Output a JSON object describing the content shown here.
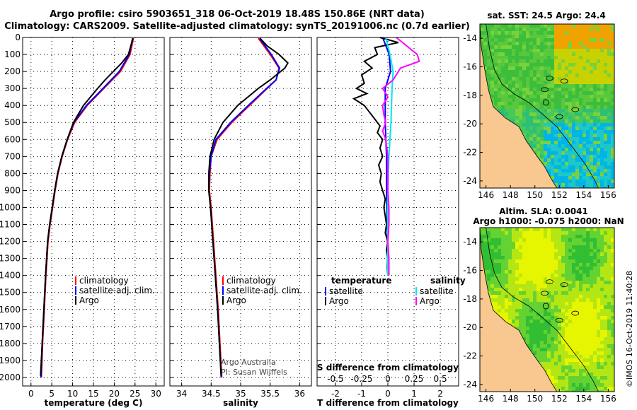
{
  "titles": {
    "line1": "Argo profile: csiro 5903651_318 06-Oct-2019 18.48S 150.86E (NRT data)",
    "line2": "Climatology: CARS2009. Satellite-adjusted climatology: synTS_20191006.nc (0.7d earlier)"
  },
  "colors": {
    "argo": "#000000",
    "climatology": "#ff0000",
    "satellite": "#0000ff",
    "argo_salinity_diff": "#ff00ff",
    "satellite_salinity_diff": "#00e5ee"
  },
  "chart_data": [
    {
      "type": "line",
      "title": "",
      "xlabel": "temperature (deg C)",
      "ylabel": "",
      "xlim": [
        -2,
        32
      ],
      "ylim": [
        2050,
        0
      ],
      "xticks": [
        0,
        5,
        10,
        15,
        20,
        25,
        30
      ],
      "yticks": [
        0,
        100,
        200,
        300,
        400,
        500,
        600,
        700,
        800,
        900,
        1000,
        1100,
        1200,
        1300,
        1400,
        1500,
        1600,
        1700,
        1800,
        1900,
        2000
      ],
      "legend": [
        "climatology",
        "satellite-adj. clim.",
        "Argo"
      ],
      "series": [
        {
          "name": "climatology",
          "color": "#ff0000",
          "depth": [
            5,
            100,
            200,
            300,
            400,
            500,
            600,
            700,
            800,
            900,
            1000,
            1100,
            1200,
            1400,
            1600,
            1800,
            2000
          ],
          "values": [
            24.6,
            23.8,
            21.5,
            17.5,
            13.5,
            10.5,
            8.8,
            7.5,
            6.5,
            5.8,
            5.2,
            4.6,
            4.1,
            3.6,
            3.2,
            2.8,
            2.5
          ]
        },
        {
          "name": "satellite-adj. clim.",
          "color": "#0000ff",
          "depth": [
            5,
            100,
            200,
            300,
            400,
            500,
            600,
            700,
            800,
            900,
            1000,
            1100,
            1200,
            1400,
            1600,
            1800,
            2000
          ],
          "values": [
            24.4,
            23.6,
            21.2,
            17.3,
            13.3,
            10.3,
            8.7,
            7.4,
            6.4,
            5.7,
            5.1,
            4.5,
            4.0,
            3.5,
            3.1,
            2.7,
            2.4
          ]
        },
        {
          "name": "Argo",
          "color": "#000000",
          "depth": [
            5,
            100,
            150,
            200,
            250,
            300,
            400,
            500,
            600,
            700,
            800,
            900,
            1000,
            1100,
            1200,
            1400,
            1600,
            1800,
            1990
          ],
          "values": [
            24.5,
            23.4,
            21.8,
            19.8,
            17.8,
            16.0,
            12.6,
            10.2,
            8.7,
            7.4,
            6.4,
            5.7,
            5.1,
            4.5,
            4.0,
            3.5,
            3.1,
            2.7,
            2.3
          ]
        }
      ]
    },
    {
      "type": "line",
      "title": "",
      "xlabel": "salinity",
      "ylabel": "",
      "xlim": [
        33.8,
        36.2
      ],
      "ylim": [
        2050,
        0
      ],
      "xticks": [
        34,
        34.5,
        35,
        35.5,
        36
      ],
      "legend": [
        "climatology",
        "satellite-adj. clim.",
        "Argo"
      ],
      "annotation": [
        "Argo Australia",
        "PI: Susan Wijffels"
      ],
      "series": [
        {
          "name": "climatology",
          "color": "#ff0000",
          "depth": [
            5,
            100,
            180,
            250,
            300,
            400,
            500,
            600,
            700,
            800,
            900,
            1000,
            1200,
            1400,
            1600,
            1800,
            2000
          ],
          "values": [
            35.3,
            35.5,
            35.65,
            35.6,
            35.45,
            35.15,
            34.85,
            34.6,
            34.5,
            34.48,
            34.47,
            34.5,
            34.54,
            34.58,
            34.62,
            34.65,
            34.68
          ]
        },
        {
          "name": "satellite-adj. clim.",
          "color": "#0000ff",
          "depth": [
            5,
            100,
            180,
            250,
            300,
            400,
            500,
            600,
            700,
            800,
            900,
            1000,
            1200,
            1400,
            1600,
            1800,
            2000
          ],
          "values": [
            35.32,
            35.52,
            35.66,
            35.6,
            35.44,
            35.13,
            34.83,
            34.58,
            34.5,
            34.47,
            34.46,
            34.49,
            34.53,
            34.57,
            34.61,
            34.64,
            34.67
          ]
        },
        {
          "name": "Argo",
          "color": "#000000",
          "depth": [
            5,
            50,
            100,
            150,
            180,
            250,
            300,
            400,
            500,
            600,
            700,
            800,
            900,
            1000,
            1200,
            1400,
            1600,
            1800,
            1990
          ],
          "values": [
            35.33,
            35.45,
            35.65,
            35.8,
            35.75,
            35.5,
            35.3,
            34.95,
            34.7,
            34.55,
            34.48,
            34.46,
            34.46,
            34.49,
            34.53,
            34.57,
            34.61,
            34.64,
            34.67
          ]
        }
      ]
    },
    {
      "type": "line",
      "title": "",
      "xlabel": "T difference from climatology",
      "xlabel2": "S difference from climatology",
      "ylabel": "",
      "xlim": [
        -2.7,
        2.7
      ],
      "ylim": [
        2050,
        0
      ],
      "xticks": [
        -2,
        -1,
        0,
        1,
        2
      ],
      "xticks2": [
        -0.5,
        -0.25,
        0,
        0.25,
        0.5
      ],
      "xticklabels2": [
        "-0.5",
        "-0.25",
        "0",
        "0.25",
        "0.5"
      ],
      "legend_left_title": "temperature",
      "legend_right_title": "salinity",
      "legend": [
        "satellite",
        "Argo",
        "satellite",
        "Argo"
      ],
      "series": [
        {
          "name": "T satellite",
          "color": "#0000ff",
          "depth": [
            0,
            100,
            200,
            300,
            500,
            700,
            900,
            1100,
            1300,
            1400
          ],
          "values": [
            -0.2,
            0.05,
            0.1,
            -0.1,
            -0.1,
            -0.05,
            -0.05,
            -0.02,
            -0.01,
            0.0
          ]
        },
        {
          "name": "T Argo",
          "color": "#000000",
          "depth": [
            0,
            30,
            60,
            100,
            140,
            180,
            220,
            270,
            300,
            330,
            360,
            400,
            440,
            480,
            520,
            560,
            600,
            650,
            700,
            750,
            800,
            850,
            900,
            950,
            1000,
            1050,
            1100,
            1150,
            1200,
            1250,
            1300,
            1350,
            1400
          ],
          "values": [
            -0.3,
            0.4,
            -0.5,
            -0.4,
            -0.9,
            -0.6,
            -1.0,
            -0.9,
            -1.2,
            -0.8,
            -1.3,
            -0.9,
            -0.7,
            -0.5,
            -0.3,
            -0.4,
            -0.2,
            -0.3,
            -0.2,
            -0.35,
            -0.25,
            -0.3,
            -0.2,
            -0.1,
            -0.15,
            -0.1,
            -0.05,
            -0.1,
            0.0,
            -0.05,
            0.0,
            -0.02,
            0.0
          ]
        },
        {
          "name": "S satellite",
          "color": "#00e5ee",
          "depth": [
            0,
            100,
            200,
            300,
            500,
            700,
            900,
            1100,
            1300,
            1400
          ],
          "values": [
            -0.02,
            0.02,
            0.05,
            0.04,
            0.03,
            0.01,
            0.0,
            0.0,
            0.0,
            0.0
          ]
        },
        {
          "name": "S Argo",
          "color": "#ff00ff",
          "depth": [
            0,
            60,
            100,
            140,
            180,
            250,
            300,
            350,
            400,
            450,
            500,
            550,
            600,
            650,
            700,
            800,
            900,
            1000,
            1100,
            1200,
            1300,
            1400
          ],
          "values": [
            0.08,
            0.2,
            0.28,
            0.3,
            0.12,
            0.05,
            -0.05,
            0.0,
            -0.05,
            -0.04,
            -0.02,
            -0.05,
            -0.02,
            -0.01,
            0.0,
            0.0,
            0.0,
            0.01,
            0.01,
            0.0,
            0.01,
            0.01
          ]
        }
      ]
    },
    {
      "type": "heatmap",
      "title": "sat. SST: 24.5 Argo: 24.4",
      "xlim": [
        145.5,
        156.5
      ],
      "ylim": [
        -24.5,
        -13
      ],
      "xticks": [
        146,
        148,
        150,
        152,
        154,
        156
      ],
      "yticks": [
        -14,
        -16,
        -18,
        -20,
        -22,
        -24
      ]
    },
    {
      "type": "heatmap",
      "title": "Altim. SLA: 0.0041",
      "subtitle": "Argo h1000: -0.075 h2000: NaN",
      "xlim": [
        145.5,
        156.5
      ],
      "ylim": [
        -24.5,
        -13
      ],
      "xticks": [
        146,
        148,
        150,
        152,
        154,
        156
      ],
      "yticks": [
        -14,
        -16,
        -18,
        -20,
        -22,
        -24
      ],
      "credit": "©IMOS 16-Oct-2019 11:40:28"
    }
  ]
}
